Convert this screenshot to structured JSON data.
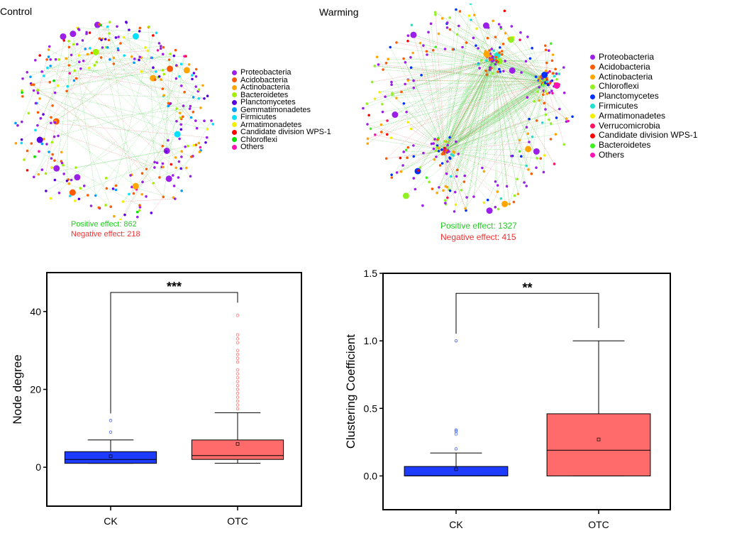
{
  "networks": [
    {
      "title": "Control",
      "positive_effect": "Positive effect: 862",
      "negative_effect": "Negative effect: 218",
      "legend": [
        {
          "label": "Proteobacteria",
          "color": "#9b1fe8"
        },
        {
          "label": "Acidobacteria",
          "color": "#ff5a00"
        },
        {
          "label": "Actinobacteria",
          "color": "#ffa500"
        },
        {
          "label": "Bacteroidetes",
          "color": "#a0f000"
        },
        {
          "label": "Planctomycetes",
          "color": "#5a00e0"
        },
        {
          "label": "Gemmatimonadetes",
          "color": "#00a0ff"
        },
        {
          "label": "Firmicutes",
          "color": "#00e0ff"
        },
        {
          "label": "Armatimonadetes",
          "color": "#f0f000"
        },
        {
          "label": "Candidate division WPS-1",
          "color": "#ff0000"
        },
        {
          "label": "Chloroflexi",
          "color": "#00e000"
        },
        {
          "label": "Others",
          "color": "#ff10b0"
        }
      ]
    },
    {
      "title": "Warming",
      "positive_effect": "Positive effect: 1327",
      "negative_effect": "Negative effect: 415",
      "legend": [
        {
          "label": "Proteobacteria",
          "color": "#9b1fe8"
        },
        {
          "label": "Acidobacteria",
          "color": "#ff5a00"
        },
        {
          "label": "Actinobacteria",
          "color": "#ffa500"
        },
        {
          "label": "Chloroflexi",
          "color": "#90f020"
        },
        {
          "label": "Planctomycetes",
          "color": "#0030ff"
        },
        {
          "label": "Firmicutes",
          "color": "#20e0d0"
        },
        {
          "label": "Armatimonadetes",
          "color": "#f0f000"
        },
        {
          "label": "Verrucomicrobia",
          "color": "#ff1060"
        },
        {
          "label": "Candidate division WPS-1",
          "color": "#ff0000"
        },
        {
          "label": "Bacteroidetes",
          "color": "#40f020"
        },
        {
          "label": "Others",
          "color": "#ff10b0"
        }
      ]
    }
  ],
  "chart_data": [
    {
      "type": "box",
      "ylabel": "Node degree",
      "xlabel": "",
      "categories": [
        "CK",
        "OTC"
      ],
      "ylim": [
        -10,
        50
      ],
      "yticks": [
        "0",
        "20",
        "40"
      ],
      "ytick_values": [
        0,
        20,
        40
      ],
      "significance": "***",
      "grid": false,
      "series": [
        {
          "category": "CK",
          "color": "#1e3cff",
          "outlier_color": "#4060ff",
          "whisker_low": 1,
          "q1": 1,
          "median": 2,
          "q3": 4,
          "whisker_high": 7,
          "mean": 2.8,
          "outliers": [
            9,
            12
          ]
        },
        {
          "category": "OTC",
          "color": "#ff6a6a",
          "outlier_color": "#ff7070",
          "whisker_low": 1,
          "q1": 2,
          "median": 3,
          "q3": 7,
          "whisker_high": 14,
          "mean": 6,
          "outliers": [
            15,
            16,
            17,
            18,
            19,
            20,
            21,
            22,
            23,
            24,
            25,
            27,
            28,
            29,
            30,
            32,
            33,
            34,
            39
          ]
        }
      ]
    },
    {
      "type": "box",
      "ylabel": "Clustering Coefficient",
      "xlabel": "",
      "categories": [
        "CK",
        "OTC"
      ],
      "ylim": [
        -0.25,
        1.5
      ],
      "yticks": [
        "0.0",
        "0.5",
        "1.0",
        "1.5"
      ],
      "ytick_values": [
        0,
        0.5,
        1.0,
        1.5
      ],
      "significance": "**",
      "grid": false,
      "series": [
        {
          "category": "CK",
          "color": "#1e3cff",
          "outlier_color": "#4060ff",
          "whisker_low": 0,
          "q1": 0,
          "median": 0,
          "q3": 0.07,
          "whisker_high": 0.17,
          "mean": 0.05,
          "outliers": [
            0.2,
            0.31,
            0.33,
            0.34,
            1.0
          ]
        },
        {
          "category": "OTC",
          "color": "#ff6a6a",
          "outlier_color": "#ff7070",
          "whisker_low": 0,
          "q1": 0,
          "median": 0.19,
          "q3": 0.46,
          "whisker_high": 1.0,
          "mean": 0.27,
          "outliers": []
        }
      ]
    }
  ]
}
